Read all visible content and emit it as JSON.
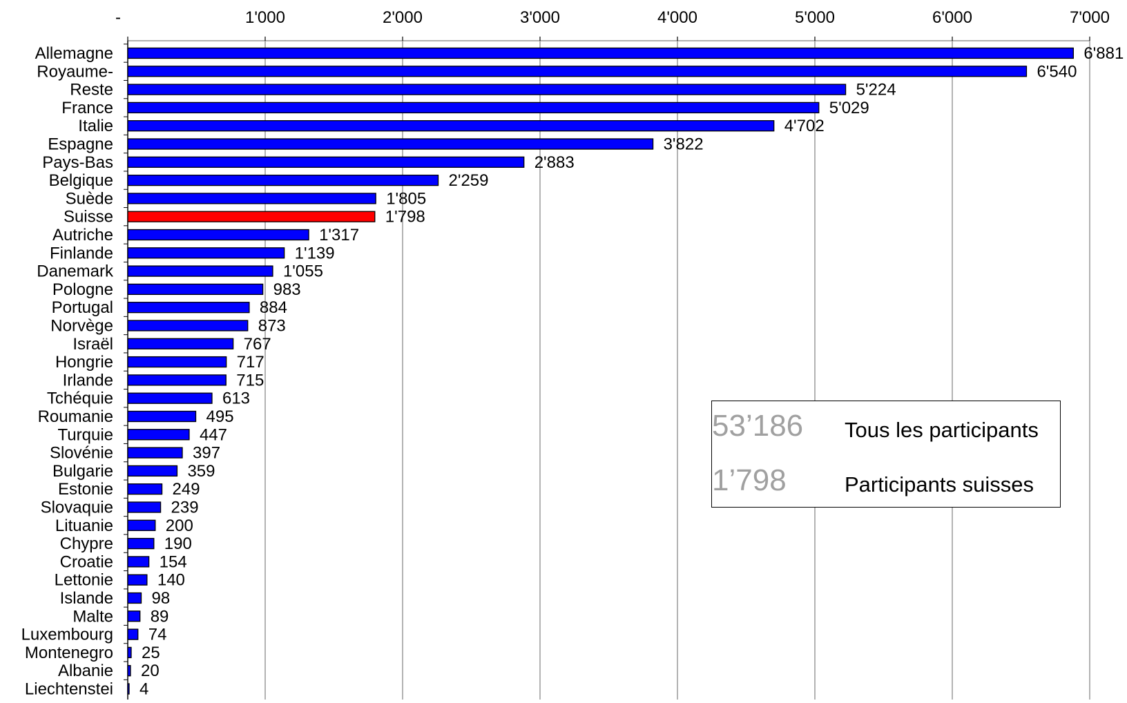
{
  "chart_data": {
    "type": "bar",
    "orientation": "horizontal",
    "categories": [
      "Allemagne",
      "Royaume-",
      "Reste",
      "France",
      "Italie",
      "Espagne",
      "Pays-Bas",
      "Belgique",
      "Suède",
      "Suisse",
      "Autriche",
      "Finlande",
      "Danemark",
      "Pologne",
      "Portugal",
      "Norvège",
      "Israël",
      "Hongrie",
      "Irlande",
      "Tchéquie",
      "Roumanie",
      "Turquie",
      "Slovénie",
      "Bulgarie",
      "Estonie",
      "Slovaquie",
      "Lituanie",
      "Chypre",
      "Croatie",
      "Lettonie",
      "Islande",
      "Malte",
      "Luxembourg",
      "Montenegro",
      "Albanie",
      "Liechtenstei"
    ],
    "values": [
      6881,
      6540,
      5224,
      5029,
      4702,
      3822,
      2883,
      2259,
      1805,
      1798,
      1317,
      1139,
      1055,
      983,
      884,
      873,
      767,
      717,
      715,
      613,
      495,
      447,
      397,
      359,
      249,
      239,
      200,
      190,
      154,
      140,
      98,
      89,
      74,
      25,
      20,
      4
    ],
    "value_labels": [
      "6'881",
      "6'540",
      "5'224",
      "5'029",
      "4'702",
      "3'822",
      "2'883",
      "2'259",
      "1'805",
      "1'798",
      "1'317",
      "1'139",
      "1'055",
      "983",
      "884",
      "873",
      "767",
      "717",
      "715",
      "613",
      "495",
      "447",
      "397",
      "359",
      "249",
      "239",
      "200",
      "190",
      "154",
      "140",
      "98",
      "89",
      "74",
      "25",
      "20",
      "4"
    ],
    "highlight": "Suisse",
    "colors": {
      "bar": "#0000ff",
      "highlight": "#ff0000",
      "grid": "#808080"
    },
    "xlim": [
      0,
      7000
    ],
    "xticks": [
      0,
      1000,
      2000,
      3000,
      4000,
      5000,
      6000,
      7000
    ],
    "xtick_labels": [
      "-",
      "1'000",
      "2'000",
      "3'000",
      "4'000",
      "5'000",
      "6'000",
      "7'000"
    ],
    "xaxis_position": "top",
    "grid": true,
    "title": "",
    "xlabel": "",
    "ylabel": ""
  },
  "legend": {
    "total_value": "53’186",
    "total_label": "Tous les participants",
    "swiss_value": "1’798",
    "swiss_label": "Participants suisses"
  }
}
